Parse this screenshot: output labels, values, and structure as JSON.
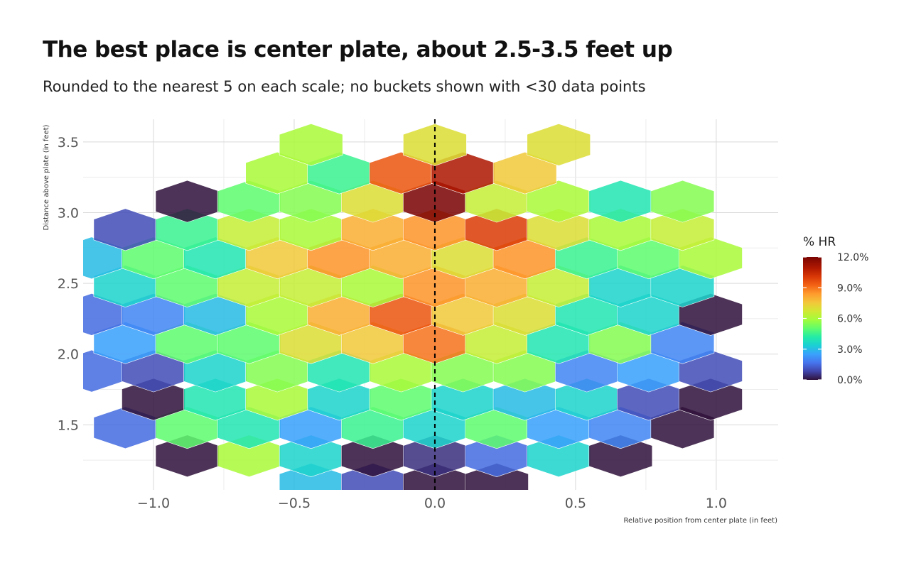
{
  "title": "The best place is center plate, about 2.5-3.5 feet up",
  "subtitle": "Rounded to the nearest 5 on each scale; no buckets shown with <30 data points",
  "chart_data": {
    "type": "heatmap",
    "geometry": "hexbin",
    "xlabel": "Relative position from center plate (in feet)",
    "ylabel": "Distance above plate (in feet)",
    "xlim": [
      -1.25,
      1.22
    ],
    "ylim": [
      1.04,
      3.66
    ],
    "x_ticks": [
      "-1.0",
      "-0.5",
      "0.0",
      "0.5",
      "1.0"
    ],
    "x_tick_values": [
      -1.0,
      -0.5,
      0.0,
      0.5,
      1.0
    ],
    "y_ticks": [
      "1.5",
      "2.0",
      "2.5",
      "3.0",
      "3.5"
    ],
    "y_tick_values": [
      1.5,
      2.0,
      2.5,
      3.0,
      3.5
    ],
    "grid": true,
    "reference_line": {
      "x": 0.0,
      "style": "dashed"
    },
    "legend": {
      "title": "% HR",
      "position": "right",
      "ticks": [
        "12.0%",
        "9.0%",
        "6.0%",
        "3.0%",
        "0.0%"
      ],
      "tick_values": [
        12.0,
        9.0,
        6.0,
        3.0,
        0.0
      ],
      "range": [
        0.0,
        12.0
      ]
    },
    "colorscale": [
      [
        0.0,
        "#30123b"
      ],
      [
        0.07,
        "#4145ab"
      ],
      [
        0.14,
        "#4675ed"
      ],
      [
        0.21,
        "#39a2fc"
      ],
      [
        0.28,
        "#1bcfd4"
      ],
      [
        0.35,
        "#24eca6"
      ],
      [
        0.42,
        "#61fc6c"
      ],
      [
        0.49,
        "#a4fc3b"
      ],
      [
        0.56,
        "#d1e834"
      ],
      [
        0.63,
        "#f3c63a"
      ],
      [
        0.7,
        "#fe9b2d"
      ],
      [
        0.77,
        "#f36315"
      ],
      [
        0.84,
        "#d93806"
      ],
      [
        0.91,
        "#b11901"
      ],
      [
        1.0,
        "#7a0403"
      ]
    ],
    "points": [
      {
        "x": -0.44,
        "y": 1.08,
        "v": 3.0
      },
      {
        "x": -0.22,
        "y": 1.08,
        "v": 1.0
      },
      {
        "x": 0.0,
        "y": 1.08,
        "v": 0.0
      },
      {
        "x": 0.22,
        "y": 1.08,
        "v": 0.0
      },
      {
        "x": -0.88,
        "y": 1.28,
        "v": 0.0
      },
      {
        "x": -0.66,
        "y": 1.28,
        "v": 6.0
      },
      {
        "x": -0.44,
        "y": 1.28,
        "v": 3.5
      },
      {
        "x": -0.22,
        "y": 1.28,
        "v": 0.0
      },
      {
        "x": 0.0,
        "y": 1.28,
        "v": 0.5
      },
      {
        "x": 0.22,
        "y": 1.28,
        "v": 1.5
      },
      {
        "x": 0.44,
        "y": 1.28,
        "v": 3.5
      },
      {
        "x": 0.66,
        "y": 1.28,
        "v": 0.0
      },
      {
        "x": -1.1,
        "y": 1.48,
        "v": 1.5
      },
      {
        "x": -0.88,
        "y": 1.48,
        "v": 5.0
      },
      {
        "x": -0.66,
        "y": 1.48,
        "v": 4.0
      },
      {
        "x": -0.44,
        "y": 1.48,
        "v": 2.5
      },
      {
        "x": -0.22,
        "y": 1.48,
        "v": 4.5
      },
      {
        "x": 0.0,
        "y": 1.48,
        "v": 3.5
      },
      {
        "x": 0.22,
        "y": 1.48,
        "v": 5.0
      },
      {
        "x": 0.44,
        "y": 1.48,
        "v": 2.5
      },
      {
        "x": 0.66,
        "y": 1.48,
        "v": 2.0
      },
      {
        "x": 0.88,
        "y": 1.48,
        "v": 0.0
      },
      {
        "x": -1.0,
        "y": 1.68,
        "v": 0.0
      },
      {
        "x": -0.78,
        "y": 1.68,
        "v": 4.0
      },
      {
        "x": -0.56,
        "y": 1.68,
        "v": 6.0
      },
      {
        "x": -0.34,
        "y": 1.68,
        "v": 3.5
      },
      {
        "x": -0.12,
        "y": 1.68,
        "v": 5.0
      },
      {
        "x": 0.1,
        "y": 1.68,
        "v": 3.5
      },
      {
        "x": 0.32,
        "y": 1.68,
        "v": 3.0
      },
      {
        "x": 0.54,
        "y": 1.68,
        "v": 3.5
      },
      {
        "x": 0.76,
        "y": 1.68,
        "v": 1.0
      },
      {
        "x": 0.98,
        "y": 1.68,
        "v": 0.0
      },
      {
        "x": -1.22,
        "y": 1.88,
        "v": 1.5
      },
      {
        "x": -1.0,
        "y": 1.88,
        "v": 1.0
      },
      {
        "x": -0.78,
        "y": 1.88,
        "v": 3.5
      },
      {
        "x": -0.56,
        "y": 1.88,
        "v": 5.5
      },
      {
        "x": -0.34,
        "y": 1.88,
        "v": 4.0
      },
      {
        "x": -0.12,
        "y": 1.88,
        "v": 6.0
      },
      {
        "x": 0.1,
        "y": 1.88,
        "v": 5.5
      },
      {
        "x": 0.32,
        "y": 1.88,
        "v": 5.5
      },
      {
        "x": 0.54,
        "y": 1.88,
        "v": 2.0
      },
      {
        "x": 0.76,
        "y": 1.88,
        "v": 2.5
      },
      {
        "x": 0.98,
        "y": 1.88,
        "v": 1.0
      },
      {
        "x": -1.1,
        "y": 2.08,
        "v": 2.5
      },
      {
        "x": -0.88,
        "y": 2.08,
        "v": 5.0
      },
      {
        "x": -0.66,
        "y": 2.08,
        "v": 5.0
      },
      {
        "x": -0.44,
        "y": 2.08,
        "v": 7.0
      },
      {
        "x": -0.22,
        "y": 2.08,
        "v": 7.5
      },
      {
        "x": 0.0,
        "y": 2.08,
        "v": 9.0
      },
      {
        "x": 0.22,
        "y": 2.08,
        "v": 6.5
      },
      {
        "x": 0.44,
        "y": 2.08,
        "v": 4.0
      },
      {
        "x": 0.66,
        "y": 2.08,
        "v": 5.5
      },
      {
        "x": 0.88,
        "y": 2.08,
        "v": 2.0
      },
      {
        "x": -1.22,
        "y": 2.28,
        "v": 1.5
      },
      {
        "x": -1.0,
        "y": 2.28,
        "v": 2.0
      },
      {
        "x": -0.78,
        "y": 2.28,
        "v": 3.0
      },
      {
        "x": -0.56,
        "y": 2.28,
        "v": 6.0
      },
      {
        "x": -0.34,
        "y": 2.28,
        "v": 8.0
      },
      {
        "x": -0.12,
        "y": 2.28,
        "v": 9.5
      },
      {
        "x": 0.1,
        "y": 2.28,
        "v": 7.5
      },
      {
        "x": 0.32,
        "y": 2.28,
        "v": 7.0
      },
      {
        "x": 0.54,
        "y": 2.28,
        "v": 4.0
      },
      {
        "x": 0.76,
        "y": 2.28,
        "v": 3.5
      },
      {
        "x": 0.98,
        "y": 2.28,
        "v": 0.0
      },
      {
        "x": -1.1,
        "y": 2.48,
        "v": 3.5
      },
      {
        "x": -0.88,
        "y": 2.48,
        "v": 5.0
      },
      {
        "x": -0.66,
        "y": 2.48,
        "v": 6.5
      },
      {
        "x": -0.44,
        "y": 2.48,
        "v": 6.5
      },
      {
        "x": -0.22,
        "y": 2.48,
        "v": 6.0
      },
      {
        "x": 0.0,
        "y": 2.48,
        "v": 8.5
      },
      {
        "x": 0.22,
        "y": 2.48,
        "v": 8.0
      },
      {
        "x": 0.44,
        "y": 2.48,
        "v": 6.5
      },
      {
        "x": 0.66,
        "y": 2.48,
        "v": 3.5
      },
      {
        "x": 0.88,
        "y": 2.48,
        "v": 3.5
      },
      {
        "x": -1.22,
        "y": 2.68,
        "v": 3.0
      },
      {
        "x": -1.0,
        "y": 2.68,
        "v": 5.0
      },
      {
        "x": -0.78,
        "y": 2.68,
        "v": 4.0
      },
      {
        "x": -0.56,
        "y": 2.68,
        "v": 7.5
      },
      {
        "x": -0.34,
        "y": 2.68,
        "v": 8.5
      },
      {
        "x": -0.12,
        "y": 2.68,
        "v": 8.0
      },
      {
        "x": 0.1,
        "y": 2.68,
        "v": 7.0
      },
      {
        "x": 0.32,
        "y": 2.68,
        "v": 8.5
      },
      {
        "x": 0.54,
        "y": 2.68,
        "v": 4.5
      },
      {
        "x": 0.76,
        "y": 2.68,
        "v": 5.0
      },
      {
        "x": 0.98,
        "y": 2.68,
        "v": 6.0
      },
      {
        "x": -1.1,
        "y": 2.88,
        "v": 1.0
      },
      {
        "x": -0.88,
        "y": 2.88,
        "v": 4.5
      },
      {
        "x": -0.66,
        "y": 2.88,
        "v": 6.5
      },
      {
        "x": -0.44,
        "y": 2.88,
        "v": 6.0
      },
      {
        "x": -0.22,
        "y": 2.88,
        "v": 8.0
      },
      {
        "x": 0.0,
        "y": 2.88,
        "v": 8.5
      },
      {
        "x": 0.22,
        "y": 2.88,
        "v": 10.0
      },
      {
        "x": 0.44,
        "y": 2.88,
        "v": 7.0
      },
      {
        "x": 0.66,
        "y": 2.88,
        "v": 6.0
      },
      {
        "x": 0.88,
        "y": 2.88,
        "v": 6.5
      },
      {
        "x": -0.88,
        "y": 3.08,
        "v": 0.0
      },
      {
        "x": -0.66,
        "y": 3.08,
        "v": 5.0
      },
      {
        "x": -0.44,
        "y": 3.08,
        "v": 5.5
      },
      {
        "x": -0.22,
        "y": 3.08,
        "v": 7.0
      },
      {
        "x": 0.0,
        "y": 3.08,
        "v": 12.0
      },
      {
        "x": 0.22,
        "y": 3.08,
        "v": 6.5
      },
      {
        "x": 0.44,
        "y": 3.08,
        "v": 6.0
      },
      {
        "x": 0.66,
        "y": 3.08,
        "v": 4.0
      },
      {
        "x": 0.88,
        "y": 3.08,
        "v": 5.5
      },
      {
        "x": -0.56,
        "y": 3.28,
        "v": 6.0
      },
      {
        "x": -0.34,
        "y": 3.28,
        "v": 4.5
      },
      {
        "x": -0.12,
        "y": 3.28,
        "v": 9.5
      },
      {
        "x": 0.1,
        "y": 3.28,
        "v": 11.0
      },
      {
        "x": 0.32,
        "y": 3.28,
        "v": 7.5
      },
      {
        "x": -0.44,
        "y": 3.48,
        "v": 6.0
      },
      {
        "x": 0.0,
        "y": 3.48,
        "v": 7.0
      },
      {
        "x": 0.44,
        "y": 3.48,
        "v": 7.0
      }
    ]
  }
}
